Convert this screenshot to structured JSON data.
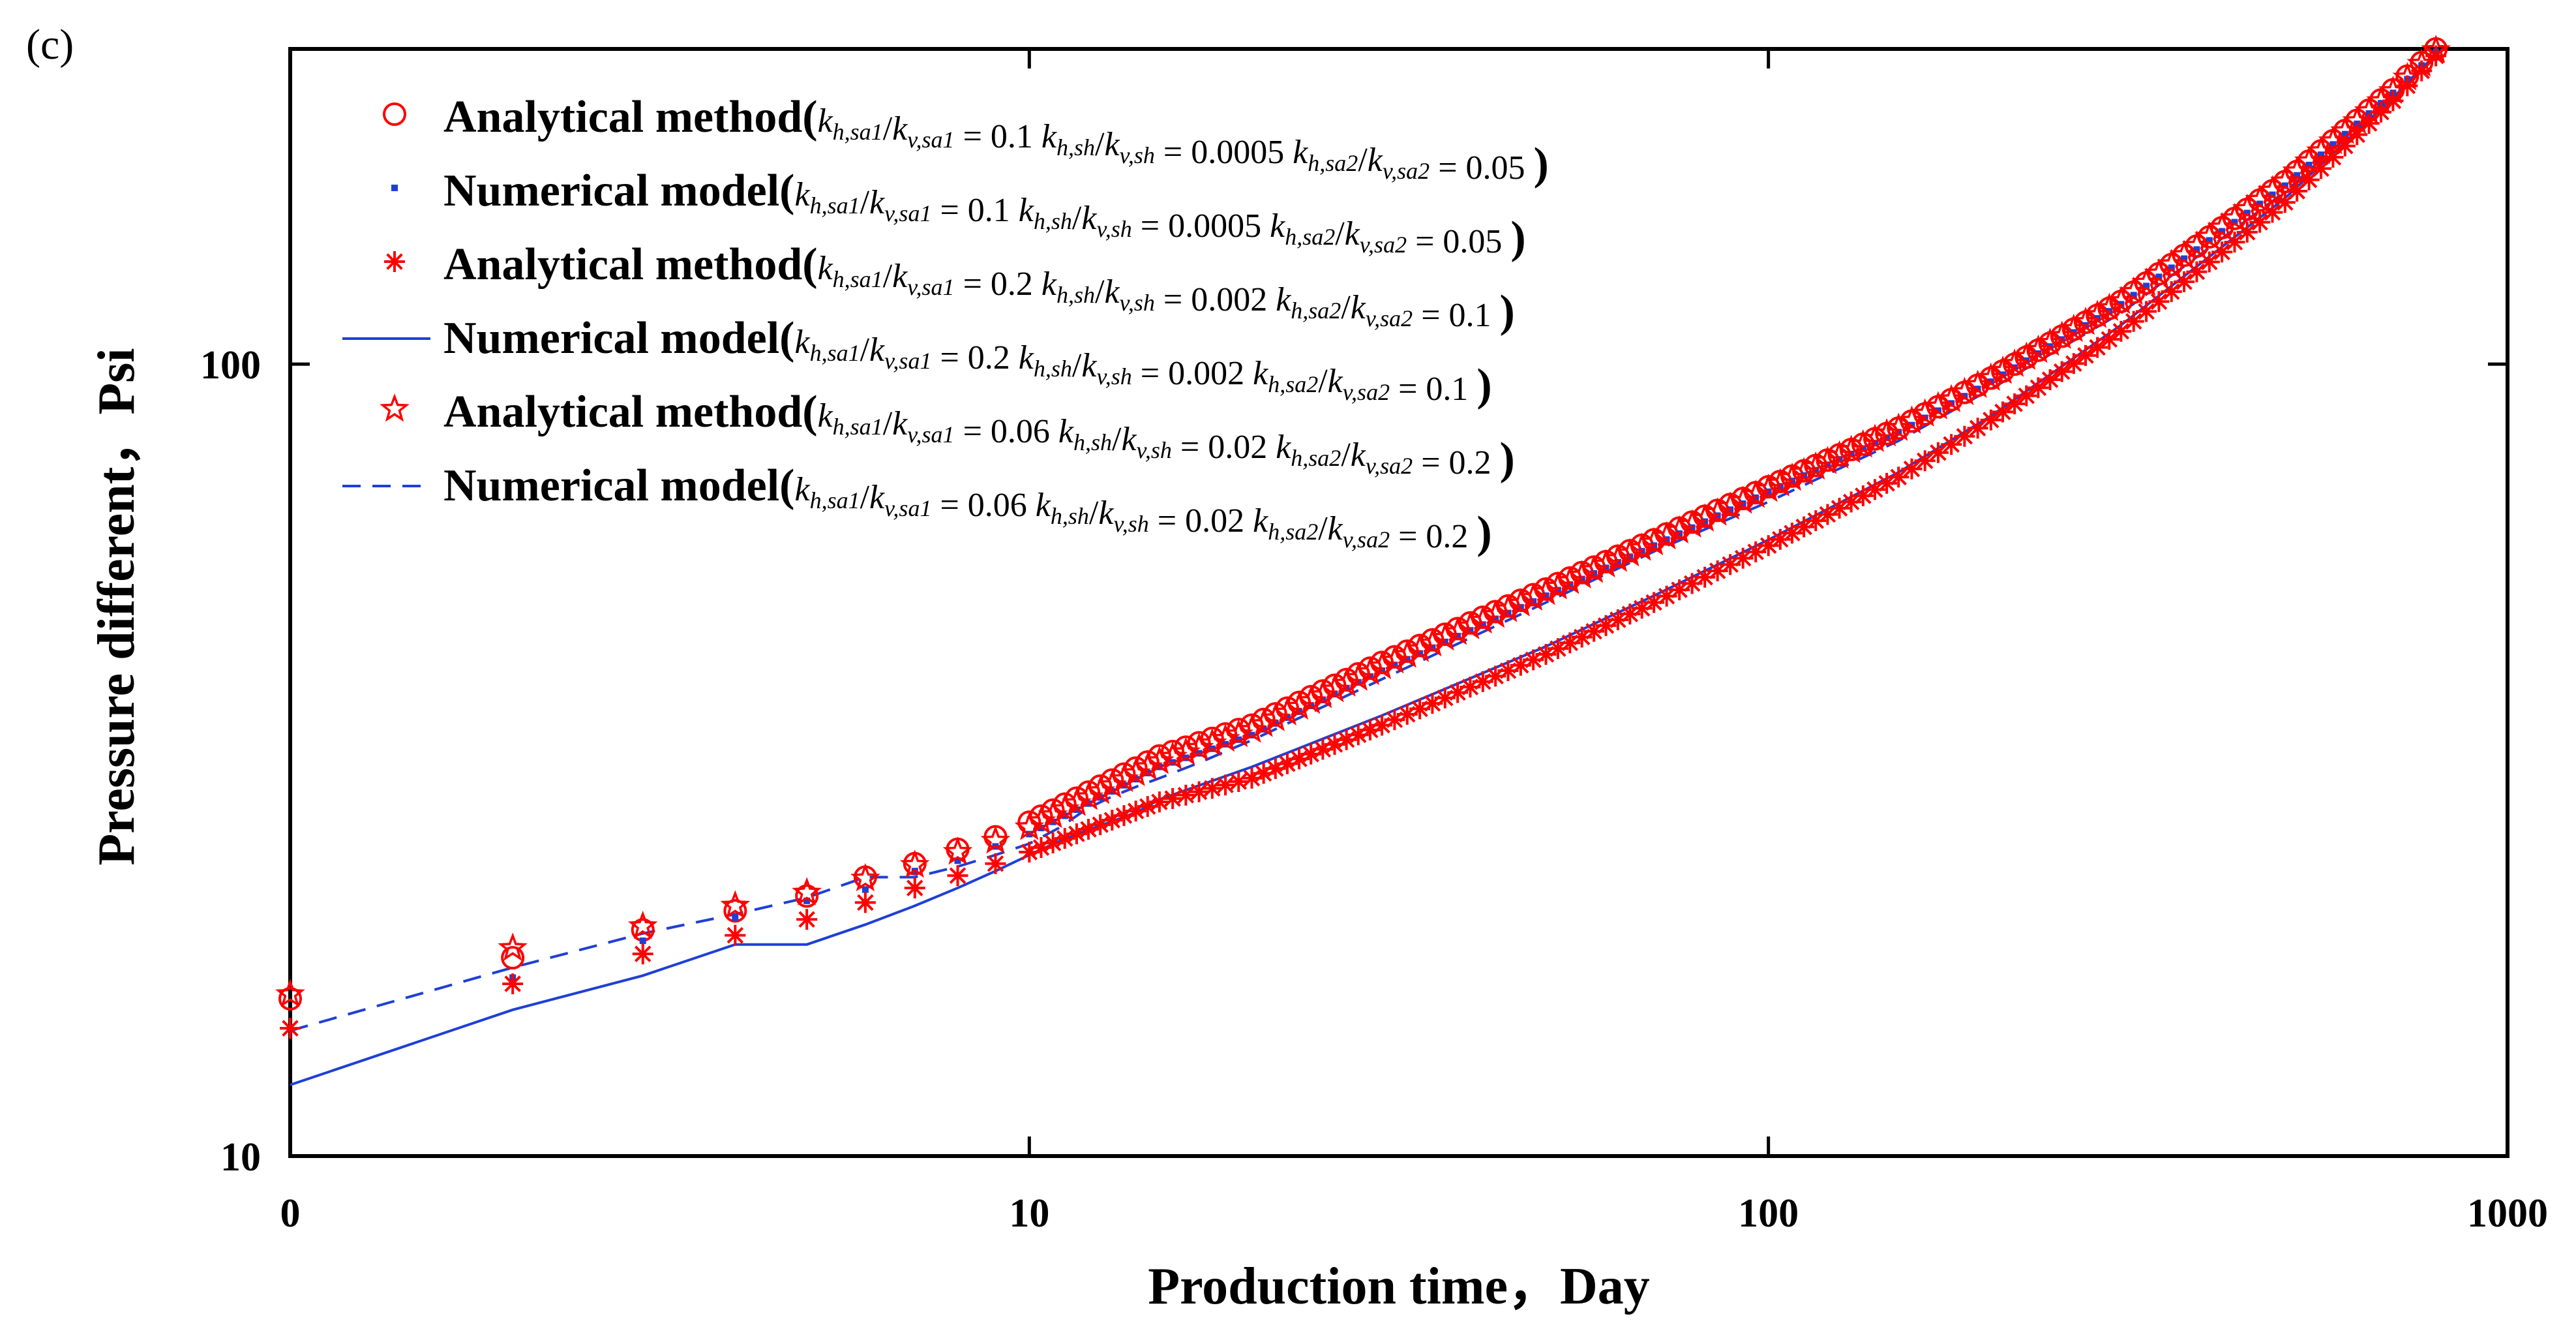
{
  "panel_label": "(c)",
  "chart_data": {
    "type": "scatter",
    "title": "",
    "xlabel": "Production time，Day",
    "ylabel": "Pressure different，Psi",
    "x_scale": "log",
    "y_scale": "log",
    "xlim": [
      1,
      1000
    ],
    "ylim": [
      10,
      250
    ],
    "x_ticks": [
      {
        "value": 1,
        "label": "0"
      },
      {
        "value": 10,
        "label": "10"
      },
      {
        "value": 100,
        "label": "100"
      },
      {
        "value": 1000,
        "label": "1000"
      }
    ],
    "y_ticks": [
      {
        "value": 10,
        "label": "10"
      },
      {
        "value": 100,
        "label": "100"
      }
    ],
    "grid": false,
    "legend_position": "top-left",
    "series": [
      {
        "name": "Analytical method(k_h,sa1/k_v,sa1=0.1  k_h,sh/k_v,sh=0.0005  k_h,sa2/k_v,sa2=0.05)",
        "marker": "circle",
        "color": "#ff0000",
        "x": [
          1,
          2,
          3,
          4,
          5,
          6,
          7,
          8,
          9,
          10,
          15,
          20,
          30,
          50,
          70,
          100,
          150,
          200,
          300,
          500,
          700,
          800
        ],
        "y": [
          15.8,
          17.8,
          19.3,
          20.4,
          21.3,
          22.5,
          23.4,
          24.4,
          25.3,
          26.4,
          32,
          35,
          42,
          52,
          60,
          70,
          83,
          96,
          120,
          170,
          222,
          250
        ]
      },
      {
        "name": "Numerical model(k_h,sa1/k_v,sa1=0.1  k_h,sh/k_v,sh=0.0005  k_h,sa2/k_v,sa2=0.05)",
        "marker": "dot",
        "color": "#1f3fd6",
        "x": [
          1,
          2,
          3,
          4,
          5,
          6,
          7,
          8,
          9,
          10,
          15,
          20,
          30,
          50,
          70,
          100,
          150,
          200,
          300,
          500,
          700,
          800
        ],
        "y": [
          14.5,
          16.8,
          18.7,
          20.0,
          21.0,
          21.7,
          22.9,
          23.6,
          24.6,
          25.5,
          31,
          34,
          41,
          51,
          59,
          69,
          82,
          95,
          119,
          168,
          220,
          248
        ]
      },
      {
        "name": "Analytical method(k_h,sa1/k_v,sa1=0.2  k_h,sh/k_v,sh=0.002  k_h,sa2/k_v,sa2=0.1)",
        "marker": "asterisk",
        "color": "#ff0000",
        "x": [
          1,
          2,
          3,
          4,
          5,
          6,
          7,
          8,
          9,
          10,
          15,
          20,
          30,
          50,
          70,
          100,
          150,
          200,
          300,
          500,
          700,
          800
        ],
        "y": [
          14.5,
          16.5,
          18.0,
          19.0,
          19.9,
          20.9,
          21.8,
          22.6,
          23.4,
          24.2,
          28,
          30,
          35,
          43,
          50,
          59,
          72,
          85,
          110,
          160,
          215,
          245
        ]
      },
      {
        "name": "Numerical model(k_h,sa1/k_v,sa1=0.2  k_h,sh/k_v,sh=0.002  k_h,sa2/k_v,sa2=0.1)",
        "marker": "line",
        "color": "#1f3fd6",
        "x": [
          1,
          2,
          3,
          4,
          5,
          6,
          7,
          8,
          9,
          10,
          11,
          12,
          13,
          14,
          15,
          20,
          30,
          50,
          70,
          100,
          150,
          200,
          300,
          500,
          700,
          800
        ],
        "y": [
          12.3,
          15.3,
          16.9,
          18.5,
          18.5,
          19.6,
          20.7,
          21.8,
          22.9,
          24.0,
          25.0,
          25.8,
          26.5,
          27.2,
          28.2,
          31,
          36,
          44,
          51,
          60,
          73,
          86,
          112,
          162,
          217,
          246
        ]
      },
      {
        "name": "Analytical method(k_h,sa1/k_v,sa1=0.06  k_h,sh/k_v,sh=0.02  k_h,sa2/k_v,sa2=0.2)",
        "marker": "star",
        "color": "#ff0000",
        "x": [
          1,
          2,
          3,
          4,
          5,
          6,
          7,
          8,
          9,
          10,
          15,
          20,
          30,
          50,
          70,
          100,
          150,
          200,
          300,
          500,
          700,
          800
        ],
        "y": [
          16.0,
          18.3,
          19.5,
          20.7,
          21.5,
          22.4,
          23.3,
          24.2,
          25.0,
          26.0,
          31.5,
          34.5,
          41.5,
          51.5,
          59.5,
          69.5,
          83,
          96,
          120,
          170,
          221,
          249
        ]
      },
      {
        "name": "Numerical model(k_h,sa1/k_v,sa1=0.06  k_h,sh/k_v,sh=0.02  k_h,sa2/k_v,sa2=0.2)",
        "marker": "dashed",
        "color": "#1f3fd6",
        "x": [
          1,
          2,
          3,
          4,
          5,
          6,
          7,
          8,
          9,
          10,
          11,
          12,
          13,
          14,
          15,
          17,
          20,
          30,
          50,
          70,
          100,
          150,
          200,
          300,
          500,
          700,
          800
        ],
        "y": [
          14.4,
          17.3,
          19.1,
          20.2,
          21.2,
          22.5,
          22.5,
          23.2,
          24.0,
          24.8,
          26.0,
          27.5,
          28.5,
          29.3,
          30.0,
          31.4,
          33.5,
          40,
          50,
          58,
          67,
          80,
          93,
          116,
          165,
          218,
          246
        ]
      }
    ],
    "legend": [
      {
        "prefix": "Analytical method(",
        "r1": "0.1",
        "r2": "0.0005",
        "r3": "0.05",
        "suffix": ")"
      },
      {
        "prefix": "Numerical model(",
        "r1": "0.1",
        "r2": "0.0005",
        "r3": "0.05",
        "suffix": ")"
      },
      {
        "prefix": "Analytical method(",
        "r1": "0.2",
        "r2": "0.002",
        "r3": "0.1",
        "suffix": ")"
      },
      {
        "prefix": "Numerical model(",
        "r1": "0.2",
        "r2": "0.002",
        "r3": "0.1",
        "suffix": ")"
      },
      {
        "prefix": "Analytical method(",
        "r1": "0.06",
        "r2": "0.02",
        "r3": "0.2",
        "suffix": ")"
      },
      {
        "prefix": "Numerical model(",
        "r1": "0.06",
        "r2": "0.02",
        "r3": "0.2",
        "suffix": ")"
      }
    ]
  }
}
